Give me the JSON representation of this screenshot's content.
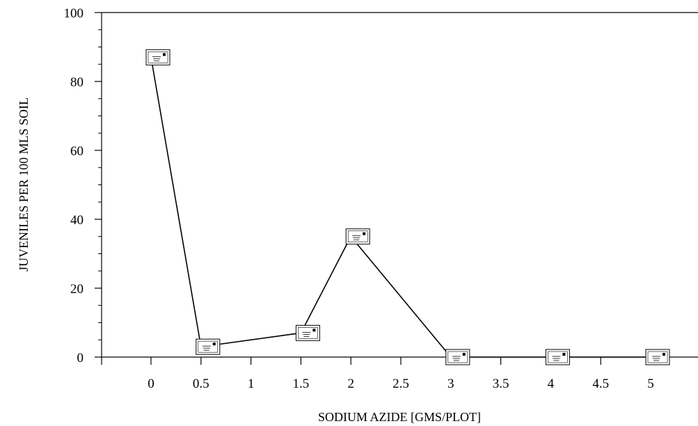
{
  "chart_data": {
    "type": "line",
    "title": "",
    "xlabel": "SODIUM AZIDE [GMS/PLOT]",
    "ylabel": "JUVENILES PER 100 MLS SOIL",
    "xlim": [
      -0.5,
      5.5
    ],
    "ylim": [
      0,
      100
    ],
    "x_ticks": [
      "0",
      "0.5",
      "1",
      "1.5",
      "2",
      "2.5",
      "3",
      "3.5",
      "4",
      "4.5",
      "5"
    ],
    "y_ticks": [
      "0",
      "20",
      "40",
      "60",
      "80",
      "100"
    ],
    "grid": false,
    "series": [
      {
        "x": [
          0,
          0.5,
          1.5,
          2,
          3,
          4,
          5
        ],
        "y": [
          87,
          3,
          7,
          35,
          0,
          0,
          0
        ],
        "marker": "boxed-glyph",
        "color": "#000000"
      }
    ]
  }
}
